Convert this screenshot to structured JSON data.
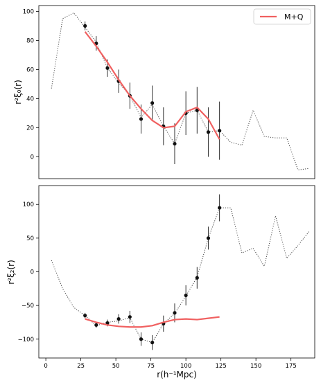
{
  "chart_data": [
    {
      "type": "line",
      "ylabel": "r²ξ₀(r)",
      "xlim": [
        -5,
        192
      ],
      "ylim": [
        -15,
        104
      ],
      "yticks": [
        0,
        20,
        40,
        60,
        80,
        100
      ],
      "xticks": [],
      "legend": {
        "placement": "top-right",
        "entries": [
          "M+Q"
        ]
      },
      "series": [
        {
          "name": "M+Q",
          "color": "#f06060",
          "style": "solid",
          "x": [
            28,
            36,
            44,
            52,
            60,
            68,
            76,
            84,
            92,
            100,
            108,
            116,
            124
          ],
          "y": [
            86,
            76,
            65,
            53,
            42,
            33,
            25,
            20,
            21,
            31,
            34,
            26,
            12
          ]
        },
        {
          "name": "",
          "color": "#444444",
          "style": "dotted",
          "x": [
            4,
            12,
            20,
            28,
            36,
            44,
            52,
            60,
            68,
            76,
            84,
            92,
            100,
            108,
            116,
            124,
            132,
            140,
            148,
            156,
            164,
            172,
            180,
            188
          ],
          "y": [
            47,
            95,
            99,
            89,
            79,
            61,
            51,
            42,
            27,
            36,
            21,
            9,
            30,
            32,
            17,
            18,
            10,
            8,
            32,
            14,
            13,
            13,
            -9,
            -8
          ]
        },
        {
          "name": "",
          "type": "errorbar",
          "color": "#111111",
          "x": [
            28,
            36,
            44,
            52,
            60,
            68,
            76,
            84,
            92,
            100,
            108,
            116,
            124
          ],
          "y": [
            90,
            78,
            61,
            52,
            42,
            26,
            37,
            21,
            9,
            30,
            32,
            17,
            18
          ],
          "yerr": [
            3,
            5,
            6,
            8,
            9,
            10,
            12,
            13,
            14,
            15,
            16,
            17,
            20
          ]
        }
      ]
    },
    {
      "type": "line",
      "xlabel": "r(h⁻¹Mpc)",
      "ylabel": "r²ξ₂(r)",
      "xlim": [
        -5,
        192
      ],
      "ylim": [
        -128,
        128
      ],
      "yticks": [
        -100,
        -50,
        0,
        50,
        100
      ],
      "xticks": [
        0,
        25,
        50,
        75,
        100,
        125,
        150,
        175
      ],
      "series": [
        {
          "name": "",
          "color": "#f06060",
          "style": "solid",
          "x": [
            28,
            36,
            44,
            52,
            60,
            68,
            76,
            84,
            92,
            100,
            108,
            116,
            124
          ],
          "y": [
            -70,
            -75,
            -79,
            -81,
            -82,
            -82,
            -80,
            -75,
            -71,
            -70,
            -71,
            -69,
            -67
          ]
        },
        {
          "name": "",
          "color": "#444444",
          "style": "dotted",
          "x": [
            4,
            12,
            20,
            28,
            36,
            44,
            52,
            60,
            68,
            76,
            84,
            92,
            100,
            108,
            116,
            124,
            132,
            140,
            148,
            156,
            164,
            172,
            180,
            188
          ],
          "y": [
            17,
            -25,
            -53,
            -65,
            -80,
            -75,
            -73,
            -68,
            -100,
            -105,
            -77,
            -62,
            -36,
            -8,
            50,
            95,
            95,
            28,
            35,
            8,
            83,
            20,
            39,
            60
          ]
        },
        {
          "name": "",
          "type": "errorbar",
          "color": "#111111",
          "x": [
            28,
            36,
            44,
            52,
            60,
            68,
            76,
            84,
            92,
            100,
            108,
            116,
            124
          ],
          "y": [
            -65,
            -79,
            -76,
            -70,
            -67,
            -100,
            -105,
            -77,
            -61,
            -35,
            -9,
            50,
            95
          ],
          "yerr": [
            4,
            4,
            5,
            7,
            9,
            10,
            11,
            12,
            14,
            15,
            16,
            17,
            20
          ]
        }
      ]
    }
  ]
}
